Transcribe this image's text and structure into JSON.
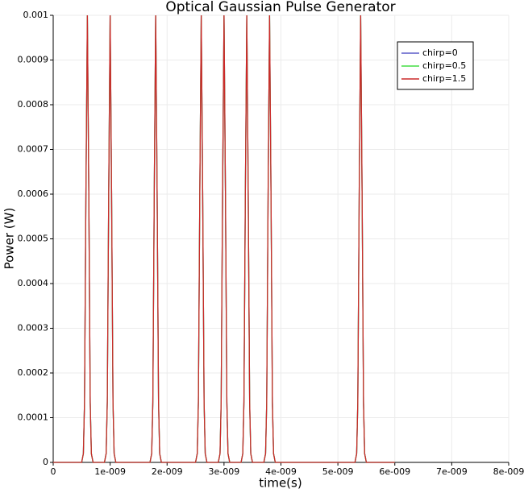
{
  "chart_data": {
    "type": "line",
    "title": "Optical Gaussian Pulse Generator",
    "x_label": "time(s)",
    "y_label": "Power (W)",
    "x": [
      0,
      5e-10,
      5.3e-10,
      5.5e-10,
      5.75e-10,
      6e-10,
      6.25e-10,
      6.5e-10,
      6.7e-10,
      7e-10,
      9e-10,
      9.3e-10,
      9.5e-10,
      9.75e-10,
      1e-09,
      1.025e-09,
      1.05e-09,
      1.07e-09,
      1.1e-09,
      1.7e-09,
      1.73e-09,
      1.75e-09,
      1.775e-09,
      1.8e-09,
      1.825e-09,
      1.85e-09,
      1.87e-09,
      1.9e-09,
      2.5e-09,
      2.53e-09,
      2.55e-09,
      2.575e-09,
      2.6e-09,
      2.625e-09,
      2.65e-09,
      2.67e-09,
      2.7e-09,
      2.9e-09,
      2.93e-09,
      2.95e-09,
      2.975e-09,
      3e-09,
      3.025e-09,
      3.05e-09,
      3.07e-09,
      3.1e-09,
      3.3e-09,
      3.33e-09,
      3.35e-09,
      3.375e-09,
      3.4e-09,
      3.425e-09,
      3.45e-09,
      3.47e-09,
      3.5e-09,
      3.7e-09,
      3.73e-09,
      3.75e-09,
      3.775e-09,
      3.8e-09,
      3.825e-09,
      3.85e-09,
      3.87e-09,
      3.9e-09,
      5.3e-09,
      5.33e-09,
      5.35e-09,
      5.375e-09,
      5.4e-09,
      5.425e-09,
      5.45e-09,
      5.47e-09,
      5.5e-09,
      6e-09
    ],
    "series": [
      {
        "name": "chirp=0",
        "color": "#5a5ac8",
        "values": [
          0,
          0,
          1.98e-05,
          0.000135,
          0.000607,
          0.001,
          0.000607,
          0.000135,
          1.98e-05,
          0,
          0,
          1.98e-05,
          0.000135,
          0.000607,
          0.001,
          0.000607,
          0.000135,
          1.98e-05,
          0,
          0,
          1.98e-05,
          0.000135,
          0.000607,
          0.001,
          0.000607,
          0.000135,
          1.98e-05,
          0,
          0,
          1.98e-05,
          0.000135,
          0.000607,
          0.001,
          0.000607,
          0.000135,
          1.98e-05,
          0,
          0,
          1.98e-05,
          0.000135,
          0.000607,
          0.001,
          0.000607,
          0.000135,
          1.98e-05,
          0,
          0,
          1.98e-05,
          0.000135,
          0.000607,
          0.001,
          0.000607,
          0.000135,
          1.98e-05,
          0,
          0,
          1.98e-05,
          0.000135,
          0.000607,
          0.001,
          0.000607,
          0.000135,
          1.98e-05,
          0,
          0,
          1.98e-05,
          0.000135,
          0.000607,
          0.001,
          0.000607,
          0.000135,
          1.98e-05,
          0,
          0
        ]
      },
      {
        "name": "chirp=0.5",
        "color": "#44dd44",
        "values": [
          0,
          0,
          1.98e-05,
          0.000135,
          0.000607,
          0.001,
          0.000607,
          0.000135,
          1.98e-05,
          0,
          0,
          1.98e-05,
          0.000135,
          0.000607,
          0.001,
          0.000607,
          0.000135,
          1.98e-05,
          0,
          0,
          1.98e-05,
          0.000135,
          0.000607,
          0.001,
          0.000607,
          0.000135,
          1.98e-05,
          0,
          0,
          1.98e-05,
          0.000135,
          0.000607,
          0.001,
          0.000607,
          0.000135,
          1.98e-05,
          0,
          0,
          1.98e-05,
          0.000135,
          0.000607,
          0.001,
          0.000607,
          0.000135,
          1.98e-05,
          0,
          0,
          1.98e-05,
          0.000135,
          0.000607,
          0.001,
          0.000607,
          0.000135,
          1.98e-05,
          0,
          0,
          1.98e-05,
          0.000135,
          0.000607,
          0.001,
          0.000607,
          0.000135,
          1.98e-05,
          0,
          0,
          1.98e-05,
          0.000135,
          0.000607,
          0.001,
          0.000607,
          0.000135,
          1.98e-05,
          0,
          0
        ]
      },
      {
        "name": "chirp=1.5",
        "color": "#cc2a2a",
        "values": [
          0,
          0,
          1.98e-05,
          0.000135,
          0.000607,
          0.001,
          0.000607,
          0.000135,
          1.98e-05,
          0,
          0,
          1.98e-05,
          0.000135,
          0.000607,
          0.001,
          0.000607,
          0.000135,
          1.98e-05,
          0,
          0,
          1.98e-05,
          0.000135,
          0.000607,
          0.001,
          0.000607,
          0.000135,
          1.98e-05,
          0,
          0,
          1.98e-05,
          0.000135,
          0.000607,
          0.001,
          0.000607,
          0.000135,
          1.98e-05,
          0,
          0,
          1.98e-05,
          0.000135,
          0.000607,
          0.001,
          0.000607,
          0.000135,
          1.98e-05,
          0,
          0,
          1.98e-05,
          0.000135,
          0.000607,
          0.001,
          0.000607,
          0.000135,
          1.98e-05,
          0,
          0,
          1.98e-05,
          0.000135,
          0.000607,
          0.001,
          0.000607,
          0.000135,
          1.98e-05,
          0,
          0,
          1.98e-05,
          0.000135,
          0.000607,
          0.001,
          0.000607,
          0.000135,
          1.98e-05,
          0,
          0
        ]
      }
    ],
    "xlim": [
      0,
      8e-09
    ],
    "xticks": [
      0,
      {
        "value": 1e-09,
        "label": "1e-009"
      },
      {
        "value": 2e-09,
        "label": "2e-009"
      },
      {
        "value": 3e-09,
        "label": "3e-009"
      },
      {
        "value": 4e-09,
        "label": "4e-009"
      },
      {
        "value": 5e-09,
        "label": "5e-009"
      },
      {
        "value": 6e-09,
        "label": "6e-009"
      },
      {
        "value": 7e-09,
        "label": "7e-009"
      },
      {
        "value": 8e-09,
        "label": "8e-009"
      }
    ],
    "ylim": [
      0,
      0.001
    ],
    "yticks": [
      0,
      0.0001,
      0.0002,
      0.0003,
      0.0004,
      0.0005,
      0.0006,
      0.0007,
      0.0008,
      0.0009,
      0.001
    ],
    "grid": true,
    "legend_position": "upper right"
  }
}
